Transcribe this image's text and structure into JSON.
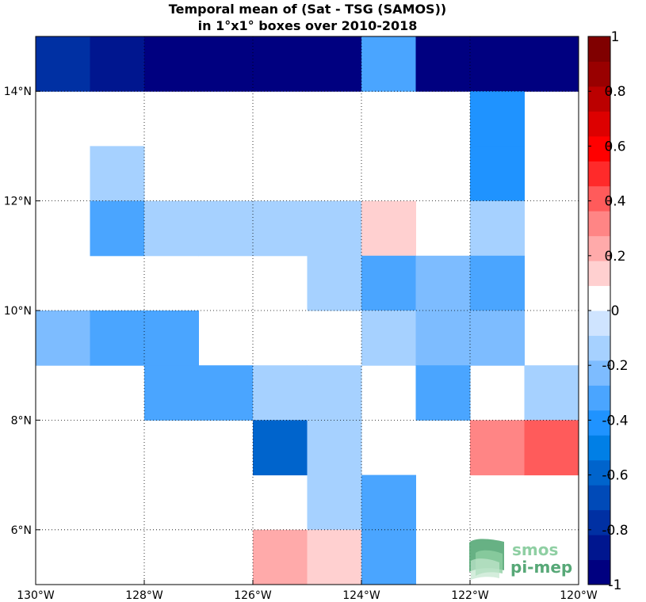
{
  "chart_data": {
    "type": "heatmap",
    "title": "Temporal mean of (Sat - TSG (SAMOS))",
    "subtitle": "in 1°x1° boxes over 2010-2018",
    "xlim": [
      -130,
      -120
    ],
    "ylim": [
      5,
      15
    ],
    "grid": true,
    "x_ticks": [
      {
        "value": -130,
        "label": "130°W"
      },
      {
        "value": -128,
        "label": "128°W"
      },
      {
        "value": -126,
        "label": "126°W"
      },
      {
        "value": -124,
        "label": "124°W"
      },
      {
        "value": -122,
        "label": "122°W"
      },
      {
        "value": -120,
        "label": "120°W"
      }
    ],
    "y_ticks": [
      {
        "value": 6,
        "label": "6°N"
      },
      {
        "value": 8,
        "label": "8°N"
      },
      {
        "value": 10,
        "label": "10°N"
      },
      {
        "value": 12,
        "label": "12°N"
      },
      {
        "value": 14,
        "label": "14°N"
      }
    ],
    "colorbar": {
      "min": -1,
      "max": 1,
      "step": 0.1,
      "colors": [
        "#000080",
        "#00168f",
        "#0030a3",
        "#004ab8",
        "#0064cc",
        "#007fe6",
        "#1f93ff",
        "#4aa5ff",
        "#7dbcff",
        "#a6d1ff",
        "#cfe4ff",
        "#ffffff",
        "#ffd0d0",
        "#ffaaaa",
        "#ff8585",
        "#ff5b5b",
        "#ff2a2a",
        "#ff0000",
        "#dd0000",
        "#bb0000",
        "#990000",
        "#800000"
      ],
      "ticks": [
        {
          "value": 1,
          "label": "1"
        },
        {
          "value": 0.8,
          "label": "0.8"
        },
        {
          "value": 0.6,
          "label": "0.6"
        },
        {
          "value": 0.4,
          "label": "0.4"
        },
        {
          "value": 0.2,
          "label": "0.2"
        },
        {
          "value": 0,
          "label": "0"
        },
        {
          "value": -0.2,
          "label": "-0.2"
        },
        {
          "value": -0.4,
          "label": "-0.4"
        },
        {
          "value": -0.6,
          "label": "-0.6"
        },
        {
          "value": -0.8,
          "label": "-0.8"
        },
        {
          "value": -1,
          "label": "-1"
        }
      ]
    },
    "cells": [
      {
        "lon": -130,
        "lat": 14,
        "value": -0.8
      },
      {
        "lon": -129,
        "lat": 14,
        "value": -0.85
      },
      {
        "lon": -128,
        "lat": 14,
        "value": -1
      },
      {
        "lon": -127,
        "lat": 14,
        "value": -1
      },
      {
        "lon": -126,
        "lat": 14,
        "value": -1
      },
      {
        "lon": -125,
        "lat": 14,
        "value": -1
      },
      {
        "lon": -124,
        "lat": 14,
        "value": -0.35
      },
      {
        "lon": -123,
        "lat": 14,
        "value": -1
      },
      {
        "lon": -122,
        "lat": 14,
        "value": -1
      },
      {
        "lon": -121,
        "lat": 14,
        "value": -1
      },
      {
        "lon": -122,
        "lat": 13,
        "value": -0.45
      },
      {
        "lon": -129,
        "lat": 12,
        "value": -0.15
      },
      {
        "lon": -122,
        "lat": 12,
        "value": -0.45
      },
      {
        "lon": -129,
        "lat": 11,
        "value": -0.35
      },
      {
        "lon": -128,
        "lat": 11,
        "value": -0.15
      },
      {
        "lon": -127,
        "lat": 11,
        "value": -0.15
      },
      {
        "lon": -126,
        "lat": 11,
        "value": -0.15
      },
      {
        "lon": -125,
        "lat": 11,
        "value": -0.15
      },
      {
        "lon": -124,
        "lat": 11,
        "value": 0.15
      },
      {
        "lon": -122,
        "lat": 11,
        "value": -0.15
      },
      {
        "lon": -125,
        "lat": 10,
        "value": -0.15
      },
      {
        "lon": -124,
        "lat": 10,
        "value": -0.35
      },
      {
        "lon": -123,
        "lat": 10,
        "value": -0.25
      },
      {
        "lon": -122,
        "lat": 10,
        "value": -0.35
      },
      {
        "lon": -130,
        "lat": 9,
        "value": -0.25
      },
      {
        "lon": -129,
        "lat": 9,
        "value": -0.35
      },
      {
        "lon": -128,
        "lat": 9,
        "value": -0.35
      },
      {
        "lon": -124,
        "lat": 9,
        "value": -0.15
      },
      {
        "lon": -123,
        "lat": 9,
        "value": -0.25
      },
      {
        "lon": -122,
        "lat": 9,
        "value": -0.25
      },
      {
        "lon": -128,
        "lat": 8,
        "value": -0.35
      },
      {
        "lon": -127,
        "lat": 8,
        "value": -0.35
      },
      {
        "lon": -126,
        "lat": 8,
        "value": -0.15
      },
      {
        "lon": -125,
        "lat": 8,
        "value": -0.15
      },
      {
        "lon": -123,
        "lat": 8,
        "value": -0.35
      },
      {
        "lon": -121,
        "lat": 8,
        "value": -0.15
      },
      {
        "lon": -126,
        "lat": 7,
        "value": -0.55
      },
      {
        "lon": -125,
        "lat": 7,
        "value": -0.15
      },
      {
        "lon": -122,
        "lat": 7,
        "value": 0.35
      },
      {
        "lon": -121,
        "lat": 7,
        "value": 0.45
      },
      {
        "lon": -125,
        "lat": 6,
        "value": -0.15
      },
      {
        "lon": -124,
        "lat": 6,
        "value": -0.35
      },
      {
        "lon": -126,
        "lat": 5,
        "value": 0.25
      },
      {
        "lon": -125,
        "lat": 5,
        "value": 0.15
      },
      {
        "lon": -124,
        "lat": 5,
        "value": -0.35
      }
    ]
  },
  "logo": {
    "line1": "smos",
    "line2": "pi-mep",
    "colors": [
      "#57a877",
      "#8fcfa3",
      "#c2e6cd"
    ]
  }
}
